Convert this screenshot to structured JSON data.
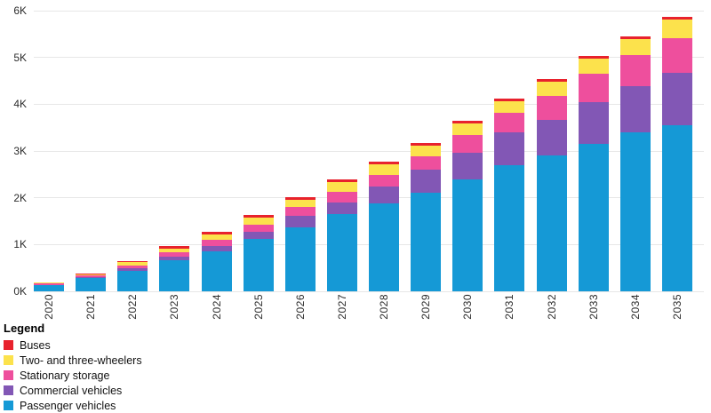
{
  "legend": {
    "title": "Legend",
    "order": [
      "Buses",
      "Two- and three-wheelers",
      "Stationary storage",
      "Commercial vehicles",
      "Passenger vehicles"
    ]
  },
  "colors": {
    "buses": "#e8222d",
    "two_three_wheelers": "#fce24c",
    "stationary_storage": "#ee4f9d",
    "commercial_vehicles": "#8257b5",
    "passenger_vehicles": "#1599d6",
    "gridline": "#e7e7e7",
    "axis_text": "#2b2b2b"
  },
  "chart_data": {
    "type": "bar",
    "stacked": true,
    "title": "",
    "xlabel": "",
    "ylabel": "",
    "ylim": [
      0,
      6000
    ],
    "grid": true,
    "legend_position": "bottom-left",
    "y_ticks": [
      "0K",
      "1K",
      "2K",
      "3K",
      "4K",
      "5K",
      "6K"
    ],
    "y_tick_values": [
      0,
      1000,
      2000,
      3000,
      4000,
      5000,
      6000
    ],
    "categories": [
      "2020",
      "2021",
      "2022",
      "2023",
      "2024",
      "2025",
      "2026",
      "2027",
      "2028",
      "2029",
      "2030",
      "2031",
      "2032",
      "2033",
      "2034",
      "2035"
    ],
    "series": [
      {
        "name": "Passenger vehicles",
        "color": "#1599d6",
        "values": [
          130,
          285,
          440,
          665,
          860,
          1125,
          1370,
          1655,
          1885,
          2110,
          2400,
          2690,
          2910,
          3160,
          3390,
          3560
        ]
      },
      {
        "name": "Commercial vehicles",
        "color": "#8257b5",
        "values": [
          10,
          15,
          55,
          80,
          115,
          150,
          245,
          250,
          360,
          490,
          570,
          700,
          760,
          890,
          990,
          1105
        ]
      },
      {
        "name": "Stationary storage",
        "color": "#ee4f9d",
        "values": [
          30,
          50,
          65,
          90,
          130,
          150,
          190,
          230,
          250,
          285,
          380,
          420,
          510,
          600,
          670,
          740
        ]
      },
      {
        "name": "Two- and three-wheelers",
        "color": "#fce24c",
        "values": [
          15,
          20,
          60,
          80,
          115,
          150,
          160,
          210,
          230,
          235,
          245,
          250,
          300,
          320,
          340,
          400
        ]
      },
      {
        "name": "Buses",
        "color": "#e8222d",
        "values": [
          15,
          20,
          30,
          50,
          50,
          55,
          50,
          50,
          50,
          55,
          55,
          55,
          50,
          55,
          55,
          60
        ]
      }
    ],
    "totals": [
      200,
      390,
      650,
      965,
      1270,
      1630,
      2015,
      2395,
      2775,
      3175,
      3650,
      4115,
      4530,
      5025,
      5445,
      5865
    ]
  }
}
